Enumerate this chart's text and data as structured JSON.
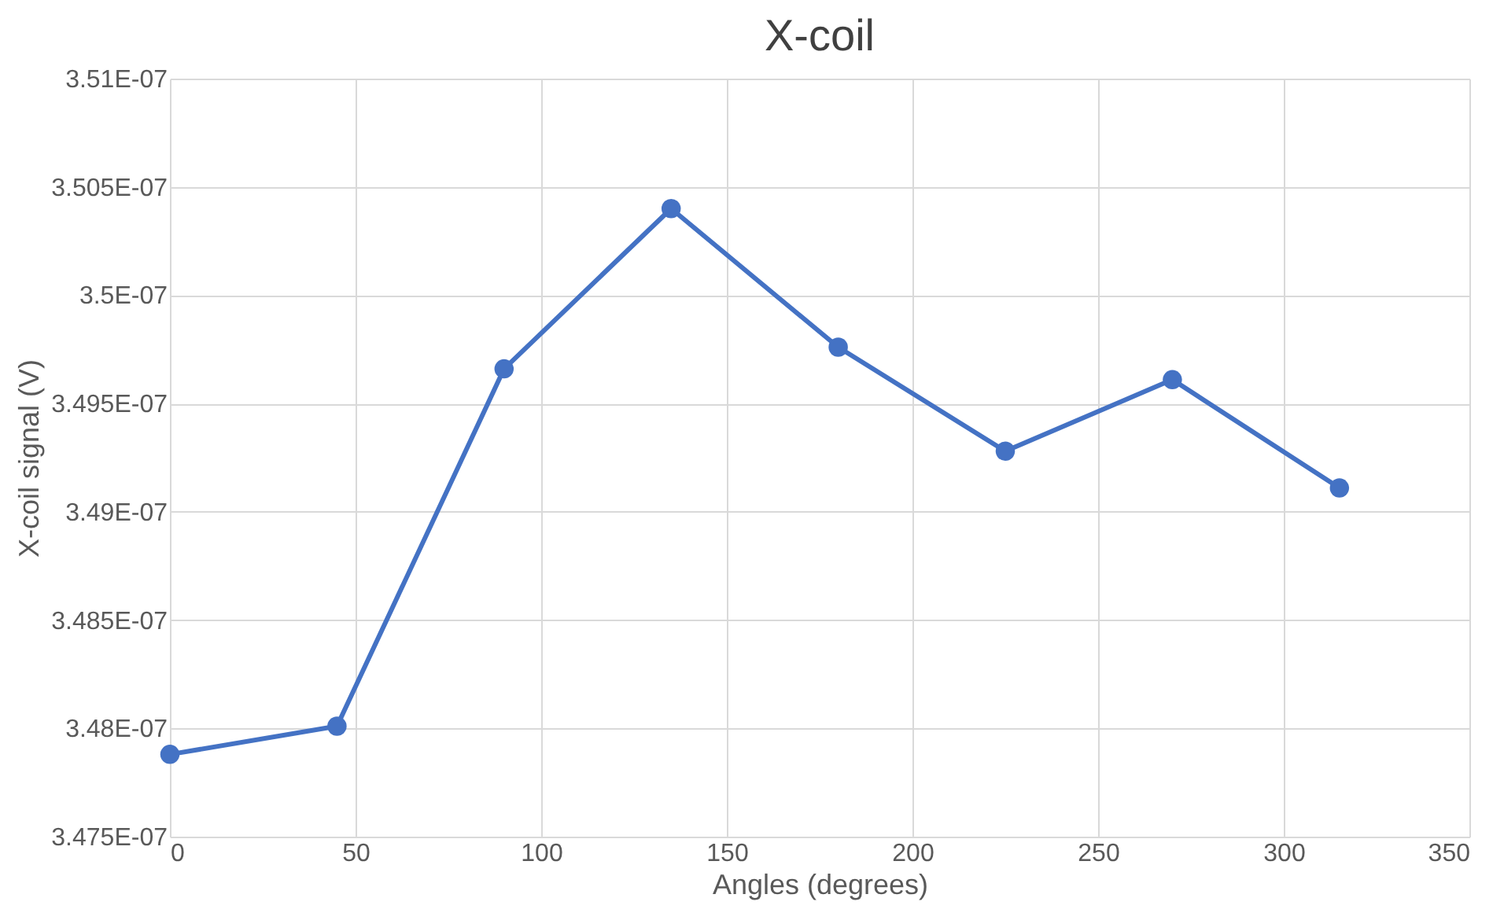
{
  "chart_data": {
    "type": "line",
    "title": "X-coil",
    "xlabel": "Angles (degrees)",
    "ylabel": "X-coil signal  (V)",
    "x": [
      0,
      45,
      90,
      135,
      180,
      225,
      270,
      315
    ],
    "series": [
      {
        "color": "#4472c4",
        "values": [
          3.4788e-07,
          3.4801e-07,
          3.4966e-07,
          3.504e-07,
          3.4976e-07,
          3.4928e-07,
          3.4961e-07,
          3.4911e-07
        ]
      }
    ],
    "xlim": [
      0,
      350
    ],
    "xticks": [
      0,
      50,
      100,
      150,
      200,
      250,
      300,
      350
    ],
    "ylim": [
      3.475e-07,
      3.51e-07
    ],
    "yticks": [
      {
        "value": 3.475e-07,
        "label": "3.475E-07"
      },
      {
        "value": 3.48e-07,
        "label": "3.48E-07"
      },
      {
        "value": 3.485e-07,
        "label": "3.485E-07"
      },
      {
        "value": 3.49e-07,
        "label": "3.49E-07"
      },
      {
        "value": 3.495e-07,
        "label": "3.495E-07"
      },
      {
        "value": 3.5e-07,
        "label": "3.5E-07"
      },
      {
        "value": 3.505e-07,
        "label": "3.505E-07"
      },
      {
        "value": 3.51e-07,
        "label": "3.51E-07"
      }
    ],
    "grid": true,
    "marker": "circle",
    "line_style": "solid"
  }
}
